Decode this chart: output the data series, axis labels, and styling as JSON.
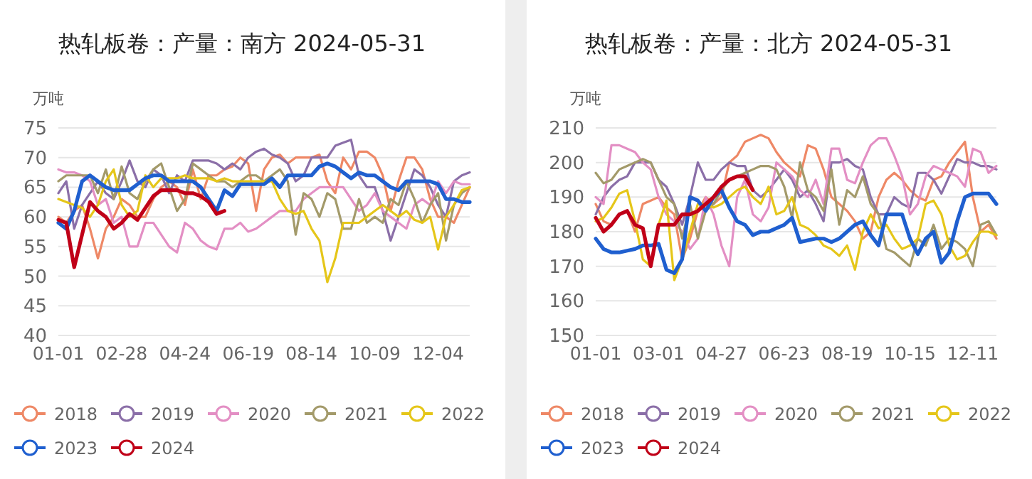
{
  "chart_data": [
    {
      "type": "line",
      "title": "热轧板卷：产量：南方 2024-05-31",
      "ylabel": "万吨",
      "grid": "y",
      "legend": "bottom",
      "line_style": "solid",
      "categories": [
        "01-01",
        null,
        null,
        null,
        null,
        null,
        null,
        null,
        "02-28",
        null,
        null,
        null,
        null,
        null,
        null,
        null,
        "04-24",
        null,
        null,
        null,
        null,
        null,
        null,
        null,
        "06-19",
        null,
        null,
        null,
        null,
        null,
        null,
        null,
        "08-14",
        null,
        null,
        null,
        null,
        null,
        null,
        null,
        "10-09",
        null,
        null,
        null,
        null,
        null,
        null,
        null,
        "12-04",
        null,
        null,
        null,
        null
      ],
      "ylim": [
        40,
        75
      ],
      "yticks": [
        40,
        45,
        50,
        55,
        60,
        65,
        70,
        75
      ],
      "series": [
        {
          "name": "2018",
          "color": "#ee8866",
          "values": [
            60,
            59,
            61,
            62,
            58,
            53,
            58,
            60,
            63,
            62,
            60,
            60,
            63,
            65,
            66,
            65,
            62,
            68,
            63,
            67,
            67,
            68,
            68.5,
            70,
            69,
            61,
            68,
            70,
            70.5,
            69,
            70,
            70,
            70,
            70.5,
            66,
            64,
            70,
            68,
            71,
            71,
            70,
            67,
            61,
            66,
            70,
            70,
            68,
            63,
            60,
            60,
            59,
            62,
            65
          ]
        },
        {
          "name": "2019",
          "color": "#8b6fa8",
          "values": [
            64,
            66,
            58,
            62,
            64,
            66,
            64,
            63,
            66,
            69.5,
            66,
            65,
            68,
            67,
            64,
            67,
            66,
            69.5,
            69.5,
            69.5,
            69,
            68,
            69,
            68,
            70,
            71,
            71.5,
            70.5,
            70,
            69,
            66,
            67,
            70,
            70,
            70,
            72,
            72.5,
            73,
            67,
            65,
            65,
            61,
            56,
            60,
            64,
            68,
            67,
            65,
            62,
            60,
            66,
            67,
            67.5
          ]
        },
        {
          "name": "2020",
          "color": "#e38fc4",
          "values": [
            68,
            67.5,
            67.5,
            67,
            66,
            62,
            63,
            59,
            60,
            55,
            55,
            59,
            59,
            57,
            55,
            54,
            59,
            58,
            56,
            55,
            54.5,
            58,
            58,
            59,
            57.5,
            58,
            59,
            60,
            61,
            61,
            61,
            63,
            64,
            65,
            65,
            65,
            65,
            63,
            61,
            62,
            64,
            61,
            60,
            59,
            58,
            62,
            63,
            62,
            66,
            64,
            66,
            65.5,
            65.5
          ]
        },
        {
          "name": "2021",
          "color": "#a39a6a",
          "values": [
            66,
            67,
            67,
            67,
            67,
            64,
            68,
            63,
            68.5,
            64,
            63,
            66,
            68,
            69,
            65,
            61,
            63,
            69,
            68,
            67,
            66,
            66,
            65,
            66,
            67,
            67,
            66,
            67,
            68,
            66,
            57,
            64,
            63,
            60,
            64,
            63,
            58,
            58,
            63,
            59,
            60,
            59,
            63,
            62,
            66,
            63,
            59,
            62,
            64,
            56,
            62,
            64,
            65
          ]
        },
        {
          "name": "2022",
          "color": "#e5c619",
          "values": [
            63,
            62.5,
            62,
            61.5,
            60,
            62,
            66,
            68,
            62,
            60,
            61,
            67,
            65,
            66.5,
            66.5,
            66.5,
            67,
            66.5,
            66.5,
            66.5,
            66,
            66.5,
            66,
            66,
            66,
            66,
            66,
            66,
            63,
            61,
            60.5,
            61,
            58,
            56,
            49,
            53,
            59,
            59,
            59,
            60,
            61,
            62,
            61,
            60,
            61,
            59.5,
            59,
            60,
            54.5,
            60,
            62,
            64.5,
            65
          ]
        },
        {
          "name": "2023",
          "color": "#1f5fcf",
          "values": [
            59,
            58,
            61,
            66,
            67,
            66,
            65,
            64.5,
            64.5,
            64.5,
            65.5,
            66.5,
            67,
            67,
            66,
            66,
            66,
            66,
            65,
            63,
            61,
            64.5,
            63.5,
            65.5,
            65.5,
            65.5,
            65.5,
            66.5,
            65,
            67,
            67,
            67,
            67,
            68.5,
            69,
            68.5,
            67.5,
            66.5,
            67.5,
            67,
            67,
            66,
            65,
            64.5,
            66,
            66,
            66,
            66,
            65.5,
            63,
            63,
            62.5,
            62.5
          ]
        },
        {
          "name": "2024",
          "color": "#c00018",
          "values": [
            59.5,
            59,
            51.5,
            57,
            62.5,
            61,
            60,
            58,
            59,
            60.5,
            59.5,
            61.5,
            63.5,
            64.5,
            64.5,
            64.5,
            64,
            64,
            63.5,
            62.5,
            60.5,
            61,
            null,
            null,
            null,
            null,
            null,
            null,
            null,
            null,
            null,
            null,
            null,
            null,
            null,
            null,
            null,
            null,
            null,
            null,
            null,
            null,
            null,
            null,
            null,
            null,
            null,
            null,
            null,
            null,
            null,
            null,
            null
          ]
        }
      ]
    },
    {
      "type": "line",
      "title": "热轧板卷：产量：北方 2024-05-31",
      "ylabel": "万吨",
      "grid": "y",
      "legend": "bottom",
      "line_style": "solid",
      "categories": [
        "01-01",
        null,
        null,
        null,
        null,
        null,
        null,
        null,
        "03-01",
        null,
        null,
        null,
        null,
        null,
        null,
        null,
        "04-27",
        null,
        null,
        null,
        null,
        null,
        null,
        null,
        "06-23",
        null,
        null,
        null,
        null,
        null,
        null,
        null,
        "08-19",
        null,
        null,
        null,
        null,
        null,
        null,
        null,
        "10-15",
        null,
        null,
        null,
        null,
        null,
        null,
        null,
        "12-11",
        null,
        null,
        null
      ],
      "ylim": [
        150,
        210
      ],
      "yticks": [
        150,
        160,
        170,
        180,
        190,
        200,
        210
      ],
      "series": [
        {
          "name": "2018",
          "color": "#ee8866",
          "values": [
            188,
            183,
            182,
            185,
            186,
            180,
            188,
            189,
            190,
            187,
            185,
            172,
            178,
            186,
            190,
            188,
            190,
            200,
            202,
            206,
            207,
            208,
            207,
            203,
            200,
            198,
            196,
            205,
            204,
            198,
            190,
            188,
            186,
            183,
            178,
            180,
            190,
            195,
            197,
            195,
            192,
            190,
            189,
            195,
            196,
            200,
            203,
            206,
            190,
            180,
            182,
            178
          ]
        },
        {
          "name": "2019",
          "color": "#8b6fa8",
          "values": [
            185,
            190,
            193,
            195,
            196,
            200,
            200,
            200,
            195,
            193,
            188,
            182,
            190,
            200,
            195,
            195,
            198,
            200,
            199,
            199,
            192,
            190,
            192,
            195,
            198,
            195,
            190,
            192,
            188,
            183,
            200,
            200,
            201,
            199,
            198,
            190,
            185,
            185,
            190,
            188,
            187,
            197,
            197,
            195,
            191,
            196,
            201,
            200,
            200,
            199,
            199,
            198
          ]
        },
        {
          "name": "2020",
          "color": "#e38fc4",
          "values": [
            190,
            188,
            205,
            205,
            204,
            203,
            200,
            198,
            190,
            185,
            183,
            180,
            175,
            178,
            190,
            185,
            176,
            170,
            190,
            195,
            185,
            183,
            187,
            200,
            198,
            196,
            192,
            190,
            195,
            188,
            204,
            204,
            195,
            194,
            200,
            205,
            207,
            207,
            202,
            196,
            185,
            188,
            196,
            199,
            198,
            197,
            196,
            193,
            204,
            203,
            197,
            199
          ]
        },
        {
          "name": "2021",
          "color": "#a39a6a",
          "values": [
            197,
            194,
            195,
            198,
            199,
            200,
            201,
            200,
            195,
            190,
            188,
            178,
            188,
            178,
            186,
            188,
            192,
            195,
            196,
            197,
            198,
            199,
            199,
            198,
            193,
            184,
            200,
            192,
            190,
            186,
            198,
            182,
            192,
            190,
            196,
            188,
            185,
            175,
            174,
            172,
            170,
            178,
            176,
            182,
            175,
            178,
            177,
            175,
            170,
            182,
            183,
            179
          ]
        },
        {
          "name": "2022",
          "color": "#e5c619",
          "values": [
            183,
            184,
            187,
            191,
            192,
            183,
            172,
            170,
            182,
            189,
            166,
            172,
            180,
            188,
            188,
            187,
            188,
            190,
            192,
            193,
            190,
            188,
            193,
            185,
            186,
            190,
            182,
            181,
            179,
            176,
            175,
            173,
            176,
            169,
            180,
            185,
            181,
            182,
            178,
            175,
            176,
            178,
            188,
            189,
            185,
            176,
            172,
            173,
            177,
            180,
            180,
            179
          ]
        },
        {
          "name": "2023",
          "color": "#1f5fcf",
          "values": [
            178,
            175,
            174,
            174,
            174.5,
            175,
            176,
            176,
            176.5,
            169,
            168,
            172,
            190,
            189,
            186,
            190,
            192,
            187,
            183,
            182,
            179,
            180,
            180,
            181,
            182,
            184,
            177,
            177.5,
            178,
            178,
            177,
            178,
            180,
            182,
            183,
            179,
            176,
            185,
            185,
            185,
            178,
            173.5,
            178,
            180,
            171,
            174,
            183,
            190,
            191,
            191,
            191,
            188
          ]
        },
        {
          "name": "2024",
          "color": "#c00018",
          "values": [
            184,
            180,
            182,
            185,
            186,
            182,
            181,
            170,
            182,
            182,
            182,
            185,
            185,
            186,
            188,
            190,
            193,
            195,
            196,
            196,
            192,
            null,
            null,
            null,
            null,
            null,
            null,
            null,
            null,
            null,
            null,
            null,
            null,
            null,
            null,
            null,
            null,
            null,
            null,
            null,
            null,
            null,
            null,
            null,
            null,
            null,
            null,
            null,
            null,
            null,
            null,
            null
          ]
        }
      ]
    }
  ]
}
